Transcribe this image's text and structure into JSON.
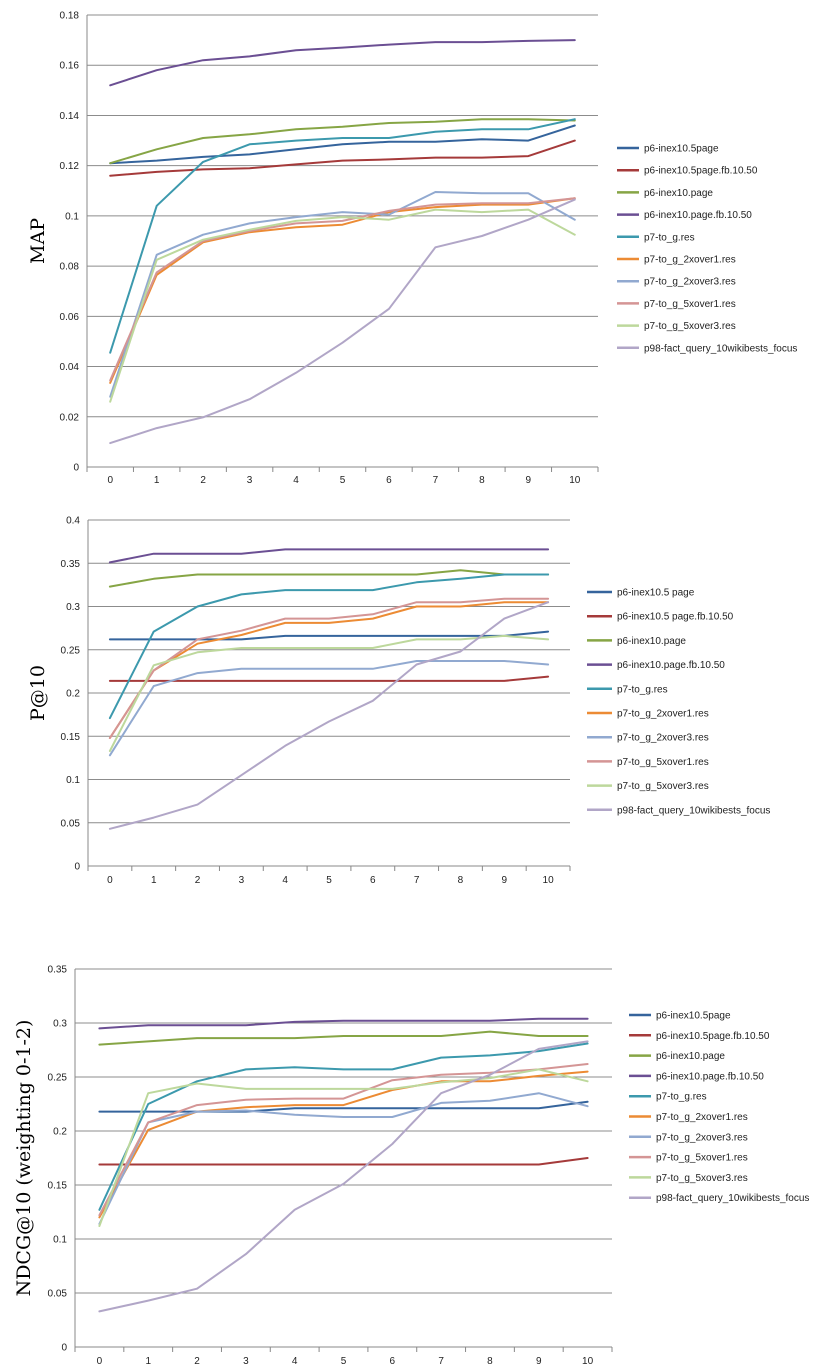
{
  "colors": {
    "p6-inex10.5page": "#35649c",
    "p6-inex10.5page.fb.10.50": "#a53a3a",
    "p6-inex10.page": "#86a545",
    "p6-inex10.page.fb.10.50": "#6b4f93",
    "p7-to_g.res": "#3c99ad",
    "p7-to_g_2xover1.res": "#ec8b34",
    "p7-to_g_2xover3.res": "#91a9d0",
    "p7-to_g_5xover1.res": "#d49595",
    "p7-to_g_5xover3.res": "#bdd89c",
    "p98-fact_query_10wikibests_focus": "#b1a6c7"
  },
  "chart_data": [
    {
      "type": "line",
      "ylabel": "MAP",
      "x": [
        0,
        1,
        2,
        3,
        4,
        5,
        6,
        7,
        8,
        9,
        10
      ],
      "ylim": [
        0,
        0.18
      ],
      "yticks": [
        "0",
        "0.02",
        "0.04",
        "0.06",
        "0.08",
        "0.1",
        "0.12",
        "0.14",
        "0.16",
        "0.18"
      ],
      "legend_position": "right",
      "grid": "horizontal",
      "series": [
        {
          "name": "p6-inex10.5page",
          "values": [
            0.121,
            0.122,
            0.1235,
            0.1245,
            0.1265,
            0.1285,
            0.1295,
            0.1295,
            0.1305,
            0.13,
            0.136
          ]
        },
        {
          "name": "p6-inex10.5page.fb.10.50",
          "values": [
            0.116,
            0.1175,
            0.1185,
            0.119,
            0.1205,
            0.122,
            0.1225,
            0.1232,
            0.1232,
            0.1238,
            0.13
          ]
        },
        {
          "name": "p6-inex10.page",
          "values": [
            0.121,
            0.1265,
            0.131,
            0.1325,
            0.1345,
            0.1355,
            0.137,
            0.1375,
            0.1385,
            0.1385,
            0.138
          ]
        },
        {
          "name": "p6-inex10.page.fb.10.50",
          "values": [
            0.152,
            0.158,
            0.162,
            0.1635,
            0.166,
            0.167,
            0.1682,
            0.1692,
            0.1692,
            0.1697,
            0.17
          ]
        },
        {
          "name": "p7-to_g.res",
          "values": [
            0.0455,
            0.104,
            0.1215,
            0.1285,
            0.13,
            0.131,
            0.131,
            0.1335,
            0.1345,
            0.1345,
            0.1385
          ]
        },
        {
          "name": "p7-to_g_2xover1.res",
          "values": [
            0.0335,
            0.0765,
            0.0895,
            0.0935,
            0.0955,
            0.0965,
            0.1015,
            0.1035,
            0.1045,
            0.1045,
            0.107
          ]
        },
        {
          "name": "p7-to_g_2xover3.res",
          "values": [
            0.028,
            0.0845,
            0.0925,
            0.097,
            0.0995,
            0.1015,
            0.1005,
            0.1095,
            0.109,
            0.109,
            0.0985
          ]
        },
        {
          "name": "p7-to_g_5xover1.res",
          "values": [
            0.0345,
            0.0775,
            0.09,
            0.094,
            0.097,
            0.098,
            0.102,
            0.1045,
            0.105,
            0.105,
            0.107
          ]
        },
        {
          "name": "p7-to_g_5xover3.res",
          "values": [
            0.026,
            0.0825,
            0.0905,
            0.0945,
            0.098,
            0.0995,
            0.0985,
            0.1025,
            0.1015,
            0.1025,
            0.0925
          ]
        },
        {
          "name": "p98-fact_query_10wikibests_focus",
          "values": [
            0.0095,
            0.0155,
            0.0198,
            0.027,
            0.0375,
            0.0495,
            0.063,
            0.0875,
            0.092,
            0.0985,
            0.1065
          ]
        }
      ]
    },
    {
      "type": "line",
      "ylabel": "P@10",
      "x": [
        0,
        1,
        2,
        3,
        4,
        5,
        6,
        7,
        8,
        9,
        10
      ],
      "ylim": [
        0,
        0.4
      ],
      "yticks": [
        "0",
        "0.05",
        "0.1",
        "0.15",
        "0.2",
        "0.25",
        "0.3",
        "0.35",
        "0.4"
      ],
      "legend_position": "right",
      "grid": "horizontal",
      "series": [
        {
          "name": "p6-inex10.5 page",
          "values": [
            0.262,
            0.262,
            0.262,
            0.262,
            0.266,
            0.266,
            0.266,
            0.266,
            0.266,
            0.266,
            0.271
          ]
        },
        {
          "name": "p6-inex10.5 page.fb.10.50",
          "values": [
            0.214,
            0.214,
            0.214,
            0.214,
            0.214,
            0.214,
            0.214,
            0.214,
            0.214,
            0.214,
            0.219
          ]
        },
        {
          "name": "p6-inex10.page",
          "values": [
            0.323,
            0.332,
            0.337,
            0.337,
            0.337,
            0.337,
            0.337,
            0.337,
            0.342,
            0.337,
            0.337
          ]
        },
        {
          "name": "p6-inex10.page.fb.10.50",
          "values": [
            0.351,
            0.361,
            0.361,
            0.361,
            0.366,
            0.366,
            0.366,
            0.366,
            0.366,
            0.366,
            0.366
          ]
        },
        {
          "name": "p7-to_g.res",
          "values": [
            0.171,
            0.271,
            0.3,
            0.314,
            0.319,
            0.319,
            0.319,
            0.328,
            0.332,
            0.337,
            0.337
          ]
        },
        {
          "name": "p7-to_g_2xover1.res",
          "values": [
            0.148,
            0.226,
            0.257,
            0.267,
            0.281,
            0.281,
            0.286,
            0.3,
            0.3,
            0.305,
            0.305
          ]
        },
        {
          "name": "p7-to_g_2xover3.res",
          "values": [
            0.128,
            0.208,
            0.223,
            0.228,
            0.228,
            0.228,
            0.228,
            0.237,
            0.237,
            0.237,
            0.233
          ]
        },
        {
          "name": "p7-to_g_5xover1.res",
          "values": [
            0.148,
            0.226,
            0.262,
            0.272,
            0.286,
            0.286,
            0.291,
            0.305,
            0.305,
            0.309,
            0.309
          ]
        },
        {
          "name": "p7-to_g_5xover3.res",
          "values": [
            0.133,
            0.232,
            0.247,
            0.252,
            0.252,
            0.252,
            0.252,
            0.262,
            0.262,
            0.266,
            0.262
          ]
        },
        {
          "name": "p98-fact_query_10wikibests_focus",
          "values": [
            0.043,
            0.056,
            0.071,
            0.105,
            0.139,
            0.167,
            0.191,
            0.233,
            0.248,
            0.286,
            0.305
          ]
        }
      ]
    },
    {
      "type": "line",
      "ylabel": "NDCG@10 (weighting 0-1-2)",
      "x": [
        0,
        1,
        2,
        3,
        4,
        5,
        6,
        7,
        8,
        9,
        10
      ],
      "ylim": [
        0,
        0.35
      ],
      "yticks": [
        "0",
        "0.05",
        "0.1",
        "0.15",
        "0.2",
        "0.25",
        "0.3",
        "0.35"
      ],
      "legend_position": "right",
      "grid": "horizontal",
      "series": [
        {
          "name": "p6-inex10.5page",
          "values": [
            0.218,
            0.218,
            0.218,
            0.218,
            0.221,
            0.221,
            0.221,
            0.221,
            0.221,
            0.221,
            0.227
          ]
        },
        {
          "name": "p6-inex10.5page.fb.10.50",
          "values": [
            0.169,
            0.169,
            0.169,
            0.169,
            0.169,
            0.169,
            0.169,
            0.169,
            0.169,
            0.169,
            0.175
          ]
        },
        {
          "name": "p6-inex10.page",
          "values": [
            0.28,
            0.283,
            0.286,
            0.286,
            0.286,
            0.288,
            0.288,
            0.288,
            0.292,
            0.288,
            0.288
          ]
        },
        {
          "name": "p6-inex10.page.fb.10.50",
          "values": [
            0.295,
            0.298,
            0.298,
            0.298,
            0.301,
            0.302,
            0.302,
            0.302,
            0.302,
            0.304,
            0.304
          ]
        },
        {
          "name": "p7-to_g.res",
          "values": [
            0.127,
            0.225,
            0.246,
            0.257,
            0.259,
            0.257,
            0.257,
            0.268,
            0.27,
            0.274,
            0.281
          ]
        },
        {
          "name": "p7-to_g_2xover1.res",
          "values": [
            0.12,
            0.201,
            0.218,
            0.222,
            0.224,
            0.224,
            0.238,
            0.246,
            0.246,
            0.251,
            0.255
          ]
        },
        {
          "name": "p7-to_g_2xover3.res",
          "values": [
            0.114,
            0.208,
            0.218,
            0.219,
            0.215,
            0.213,
            0.213,
            0.226,
            0.228,
            0.235,
            0.223
          ]
        },
        {
          "name": "p7-to_g_5xover1.res",
          "values": [
            0.122,
            0.208,
            0.224,
            0.229,
            0.23,
            0.23,
            0.247,
            0.252,
            0.254,
            0.257,
            0.262
          ]
        },
        {
          "name": "p7-to_g_5xover3.res",
          "values": [
            0.112,
            0.235,
            0.244,
            0.239,
            0.239,
            0.239,
            0.239,
            0.245,
            0.249,
            0.257,
            0.246
          ]
        },
        {
          "name": "p98-fact_query_10wikibests_focus",
          "values": [
            0.033,
            0.043,
            0.054,
            0.086,
            0.127,
            0.151,
            0.188,
            0.235,
            0.252,
            0.276,
            0.283
          ]
        }
      ]
    }
  ]
}
